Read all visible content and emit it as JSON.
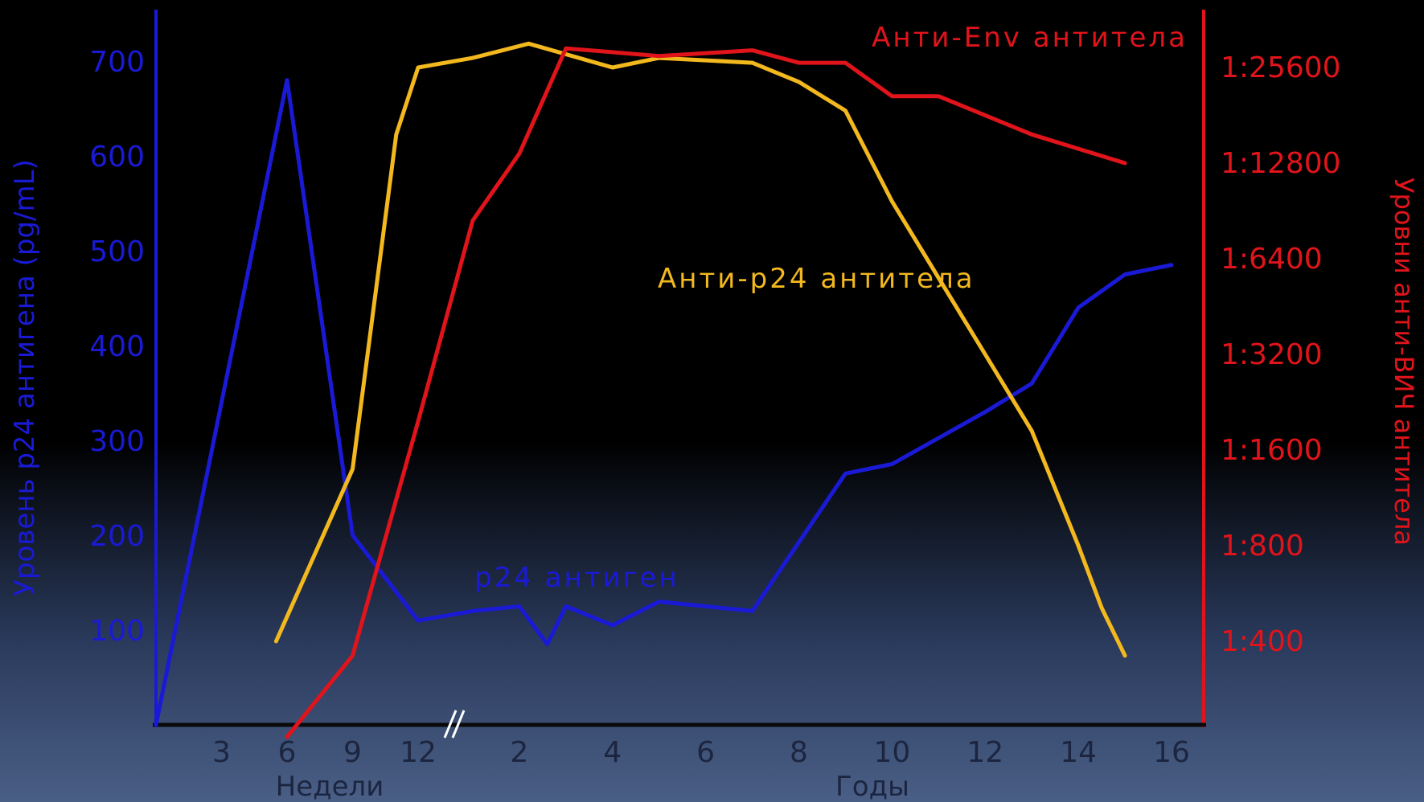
{
  "chart_data": {
    "type": "line",
    "left_axis": {
      "label": "Уровень р24 антигена (pg/mL)",
      "ticks": [
        100,
        200,
        300,
        400,
        500,
        600,
        700
      ],
      "ylim": [
        0,
        750
      ],
      "color": "#1a1ad6"
    },
    "right_axis": {
      "label": "Уровни анти-ВИЧ антитела",
      "ticks": [
        "1:400",
        "1:800",
        "1:1600",
        "1:3200",
        "1:6400",
        "1:12800",
        "1:25600"
      ],
      "color": "#e0141a"
    },
    "x_axis": {
      "weeks_label": "Недели",
      "weeks_ticks": [
        "3",
        "6",
        "9",
        "12"
      ],
      "years_label": "Годы",
      "years_ticks": [
        "2",
        "4",
        "6",
        "8",
        "10",
        "12",
        "14",
        "16"
      ],
      "grid": false
    },
    "series": [
      {
        "name": "р24 антиген",
        "axis": "left",
        "color": "#1a1ad6",
        "points": [
          [
            "w0",
            0
          ],
          [
            "w6",
            680
          ],
          [
            "w9",
            200
          ],
          [
            "w12",
            110
          ],
          [
            "y1",
            120
          ],
          [
            "y2",
            125
          ],
          [
            "y2.6",
            85
          ],
          [
            "y3",
            125
          ],
          [
            "y4",
            105
          ],
          [
            "y5",
            130
          ],
          [
            "y7",
            120
          ],
          [
            "y9",
            265
          ],
          [
            "y10",
            275
          ],
          [
            "y12",
            330
          ],
          [
            "y13",
            360
          ],
          [
            "y14",
            440
          ],
          [
            "y15",
            475
          ],
          [
            "y16",
            485
          ]
        ]
      },
      {
        "name": "Анти-р24 антитела",
        "axis": "right",
        "color": "#f2b81e",
        "points": [
          [
            "w5.5",
            1
          ],
          [
            "w9",
            2.8
          ],
          [
            "w11",
            6.3
          ],
          [
            "w12",
            7.0
          ],
          [
            "y1",
            7.1
          ],
          [
            "y2.2",
            7.25
          ],
          [
            "y4",
            7.0
          ],
          [
            "y5",
            7.1
          ],
          [
            "y7",
            7.05
          ],
          [
            "y8",
            6.85
          ],
          [
            "y9",
            6.55
          ],
          [
            "y10",
            5.6
          ],
          [
            "y11",
            4.8
          ],
          [
            "y12",
            4.0
          ],
          [
            "y13",
            3.2
          ],
          [
            "y14",
            2.0
          ],
          [
            "y14.5",
            1.35
          ],
          [
            "y15",
            0.85
          ]
        ]
      },
      {
        "name": "Анти-Env антитела",
        "axis": "right",
        "color": "#e0141a",
        "points": [
          [
            "w6",
            0
          ],
          [
            "w9",
            0.85
          ],
          [
            "w12",
            3.3
          ],
          [
            "y1",
            5.4
          ],
          [
            "y2",
            6.1
          ],
          [
            "y3",
            7.2
          ],
          [
            "y5",
            7.12
          ],
          [
            "y7",
            7.18
          ],
          [
            "y8",
            7.05
          ],
          [
            "y9",
            7.05
          ],
          [
            "y10",
            6.7
          ],
          [
            "y11",
            6.7
          ],
          [
            "y13",
            6.3
          ],
          [
            "y14",
            6.15
          ],
          [
            "y15",
            6.0
          ]
        ]
      }
    ]
  }
}
